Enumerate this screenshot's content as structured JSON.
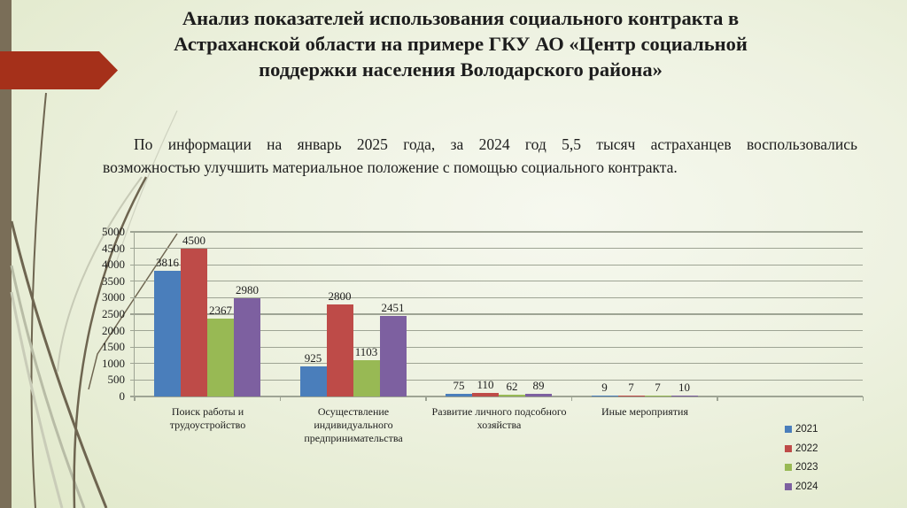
{
  "slide": {
    "title_lines": [
      "Анализ показателей использования социального контракта в",
      "Астраханской области на примере ГКУ АО «Центр социальной",
      "поддержки населения Володарского района»"
    ],
    "paragraph_lines": [
      "По информации на январь 2025 года, за 2024 год 5,5 тысяч астраханцев воспользовались",
      "возможностью улучшить материальное положение с помощью социального контракта."
    ],
    "decor": {
      "left_stripe_color": "#7a6e58",
      "banner_color": "#a5301a",
      "stem_color": "#6e6550"
    }
  },
  "chart_data": {
    "type": "bar",
    "title": "",
    "xlabel": "",
    "ylabel": "",
    "ylim": [
      0,
      5000
    ],
    "yticks": [
      0,
      500,
      1000,
      1500,
      2000,
      2500,
      3000,
      3500,
      4000,
      4500,
      5000
    ],
    "grid": true,
    "legend_position": "right-bottom",
    "categories": [
      "Поиск работы и трудоустройство",
      "Осуществление индивидуального предпринимательства",
      "Развитие личного подсобного хозяйства",
      "Иные мероприятия"
    ],
    "category_label_lines": [
      [
        "Поиск работы и",
        "трудоустройство"
      ],
      [
        "Осуществление",
        "индивидуального",
        "предпринимательства"
      ],
      [
        "Развитие личного подсобного",
        "хозяйства"
      ],
      [
        "Иные мероприятия"
      ]
    ],
    "series": [
      {
        "name": "2021",
        "color": "#4a7ebb",
        "values": [
          3816,
          925,
          75,
          9
        ]
      },
      {
        "name": "2022",
        "color": "#be4b48",
        "values": [
          4500,
          2800,
          110,
          7
        ]
      },
      {
        "name": "2023",
        "color": "#98b954",
        "values": [
          2367,
          1103,
          62,
          7
        ]
      },
      {
        "name": "2024",
        "color": "#7d60a0",
        "values": [
          2980,
          2451,
          89,
          10
        ]
      }
    ]
  }
}
